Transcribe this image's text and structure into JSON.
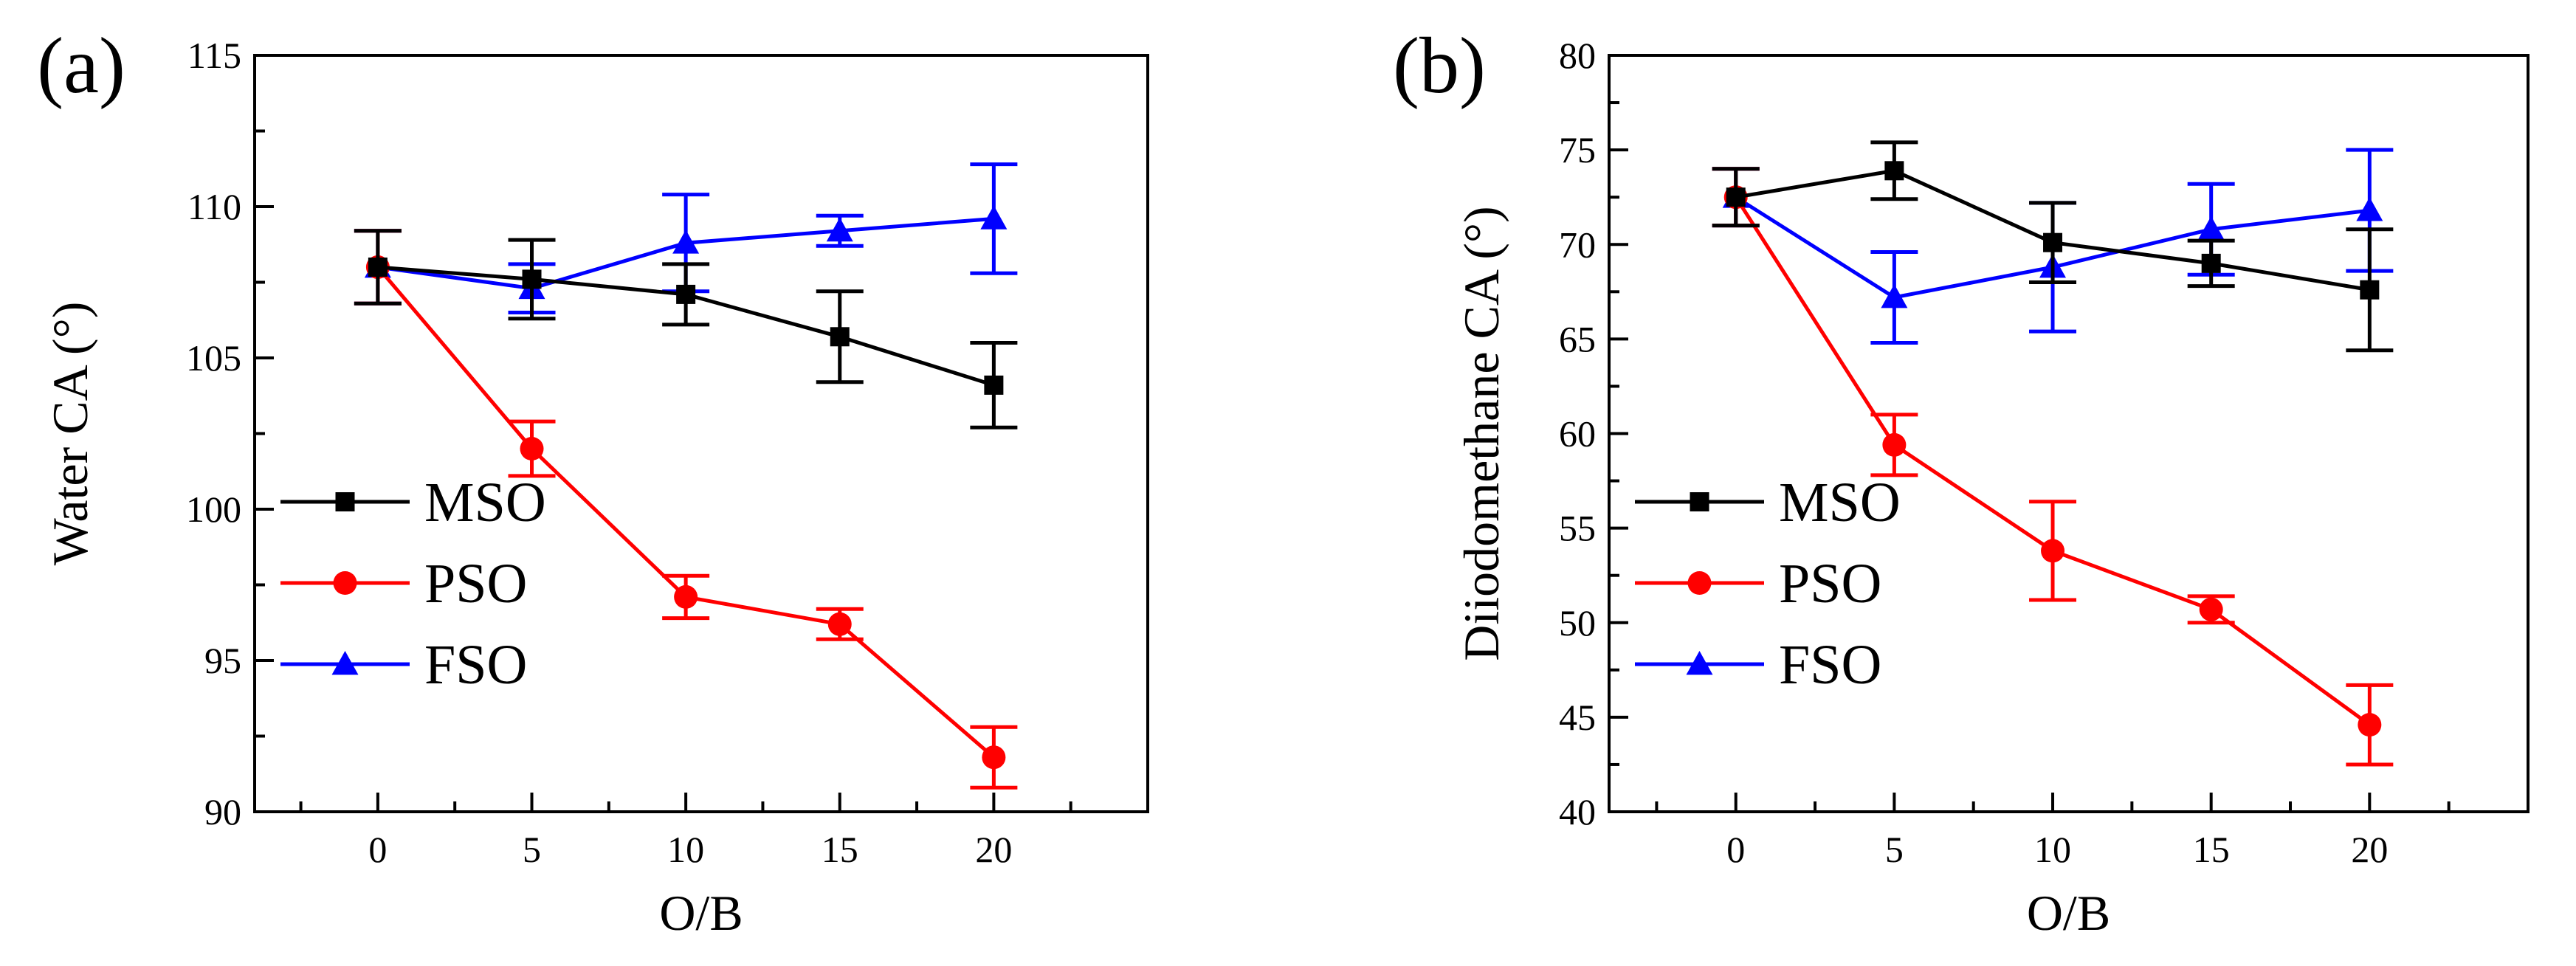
{
  "chart_data": [
    {
      "type": "line",
      "panel_label": "(a)",
      "xlabel": "O/B",
      "ylabel": "Water CA (°)",
      "xlim": [
        -4,
        25
      ],
      "ylim": [
        90,
        115
      ],
      "xticks": [
        0,
        5,
        10,
        15,
        20
      ],
      "yticks": [
        90,
        95,
        100,
        105,
        110,
        115
      ],
      "x": [
        0,
        5,
        10,
        15,
        20
      ],
      "legend_position": "middle-left",
      "series": [
        {
          "name": "MSO",
          "color": "#000000",
          "marker": "square",
          "values": [
            108.0,
            107.6,
            107.1,
            105.7,
            104.1
          ],
          "errors": [
            1.2,
            1.3,
            1.0,
            1.5,
            1.4
          ]
        },
        {
          "name": "PSO",
          "color": "#ff0000",
          "marker": "circle",
          "values": [
            108.0,
            102.0,
            97.1,
            96.2,
            91.8
          ],
          "errors": [
            1.2,
            0.9,
            0.7,
            0.5,
            1.0
          ]
        },
        {
          "name": "FSO",
          "color": "#0000ff",
          "marker": "triangle",
          "values": [
            108.0,
            107.3,
            108.8,
            109.2,
            109.6
          ],
          "errors": [
            1.2,
            0.8,
            1.6,
            0.5,
            1.8
          ]
        }
      ]
    },
    {
      "type": "line",
      "panel_label": "(b)",
      "xlabel": "O/B",
      "ylabel": "Diiodomethane CA (°)",
      "xlim": [
        -4,
        25
      ],
      "ylim": [
        40,
        80
      ],
      "xticks": [
        0,
        5,
        10,
        15,
        20
      ],
      "yticks": [
        40,
        45,
        50,
        55,
        60,
        65,
        70,
        75,
        80
      ],
      "x": [
        0,
        5,
        10,
        15,
        20
      ],
      "legend_position": "middle-left",
      "series": [
        {
          "name": "MSO",
          "color": "#000000",
          "marker": "square",
          "values": [
            72.5,
            73.9,
            70.1,
            69.0,
            67.6
          ],
          "errors": [
            1.5,
            1.5,
            2.1,
            1.2,
            3.2
          ]
        },
        {
          "name": "PSO",
          "color": "#ff0000",
          "marker": "circle",
          "values": [
            72.5,
            59.4,
            53.8,
            50.7,
            44.6
          ],
          "errors": [
            1.5,
            1.6,
            2.6,
            0.7,
            2.1
          ]
        },
        {
          "name": "FSO",
          "color": "#0000ff",
          "marker": "triangle",
          "values": [
            72.5,
            67.2,
            68.8,
            70.8,
            71.8
          ],
          "errors": [
            1.5,
            2.4,
            3.4,
            2.4,
            3.2
          ]
        }
      ]
    }
  ]
}
